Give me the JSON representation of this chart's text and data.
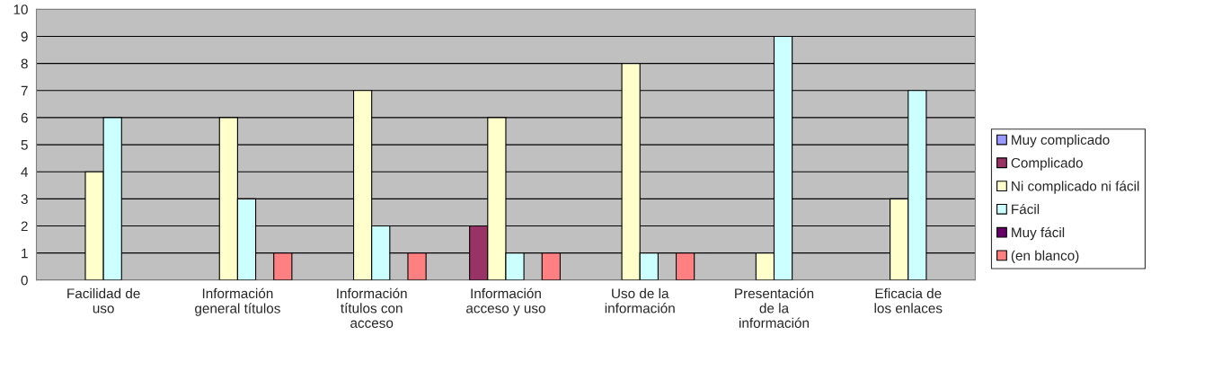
{
  "chart_data": {
    "type": "bar",
    "categories": [
      "Facilidad de\nuso",
      "Información\ngeneral títulos",
      "Información\ntítulos con\nacceso",
      "Información\nacceso y uso",
      "Uso de la\ninformación",
      "Presentación\nde la\ninformación",
      "Eficacia de\nlos enlaces"
    ],
    "series": [
      {
        "name": "Muy complicado",
        "color": "#9999ff",
        "values": [
          null,
          null,
          null,
          null,
          null,
          null,
          null
        ]
      },
      {
        "name": "Complicado",
        "color": "#993366",
        "values": [
          null,
          null,
          null,
          2,
          null,
          null,
          null
        ]
      },
      {
        "name": "Ni complicado ni fácil",
        "color": "#ffffcc",
        "values": [
          4,
          6,
          7,
          6,
          8,
          1,
          3
        ]
      },
      {
        "name": "Fácil",
        "color": "#ccffff",
        "values": [
          6,
          3,
          2,
          1,
          1,
          9,
          7
        ]
      },
      {
        "name": "Muy fácil",
        "color": "#660066",
        "values": [
          null,
          null,
          null,
          null,
          null,
          null,
          null
        ]
      },
      {
        "name": "(en blanco)",
        "color": "#ff8080",
        "values": [
          null,
          1,
          1,
          1,
          1,
          null,
          null
        ]
      }
    ],
    "ylim": [
      0,
      10
    ],
    "yticks": [
      0,
      1,
      2,
      3,
      4,
      5,
      6,
      7,
      8,
      9,
      10
    ],
    "grid": "y",
    "legend": "right"
  }
}
